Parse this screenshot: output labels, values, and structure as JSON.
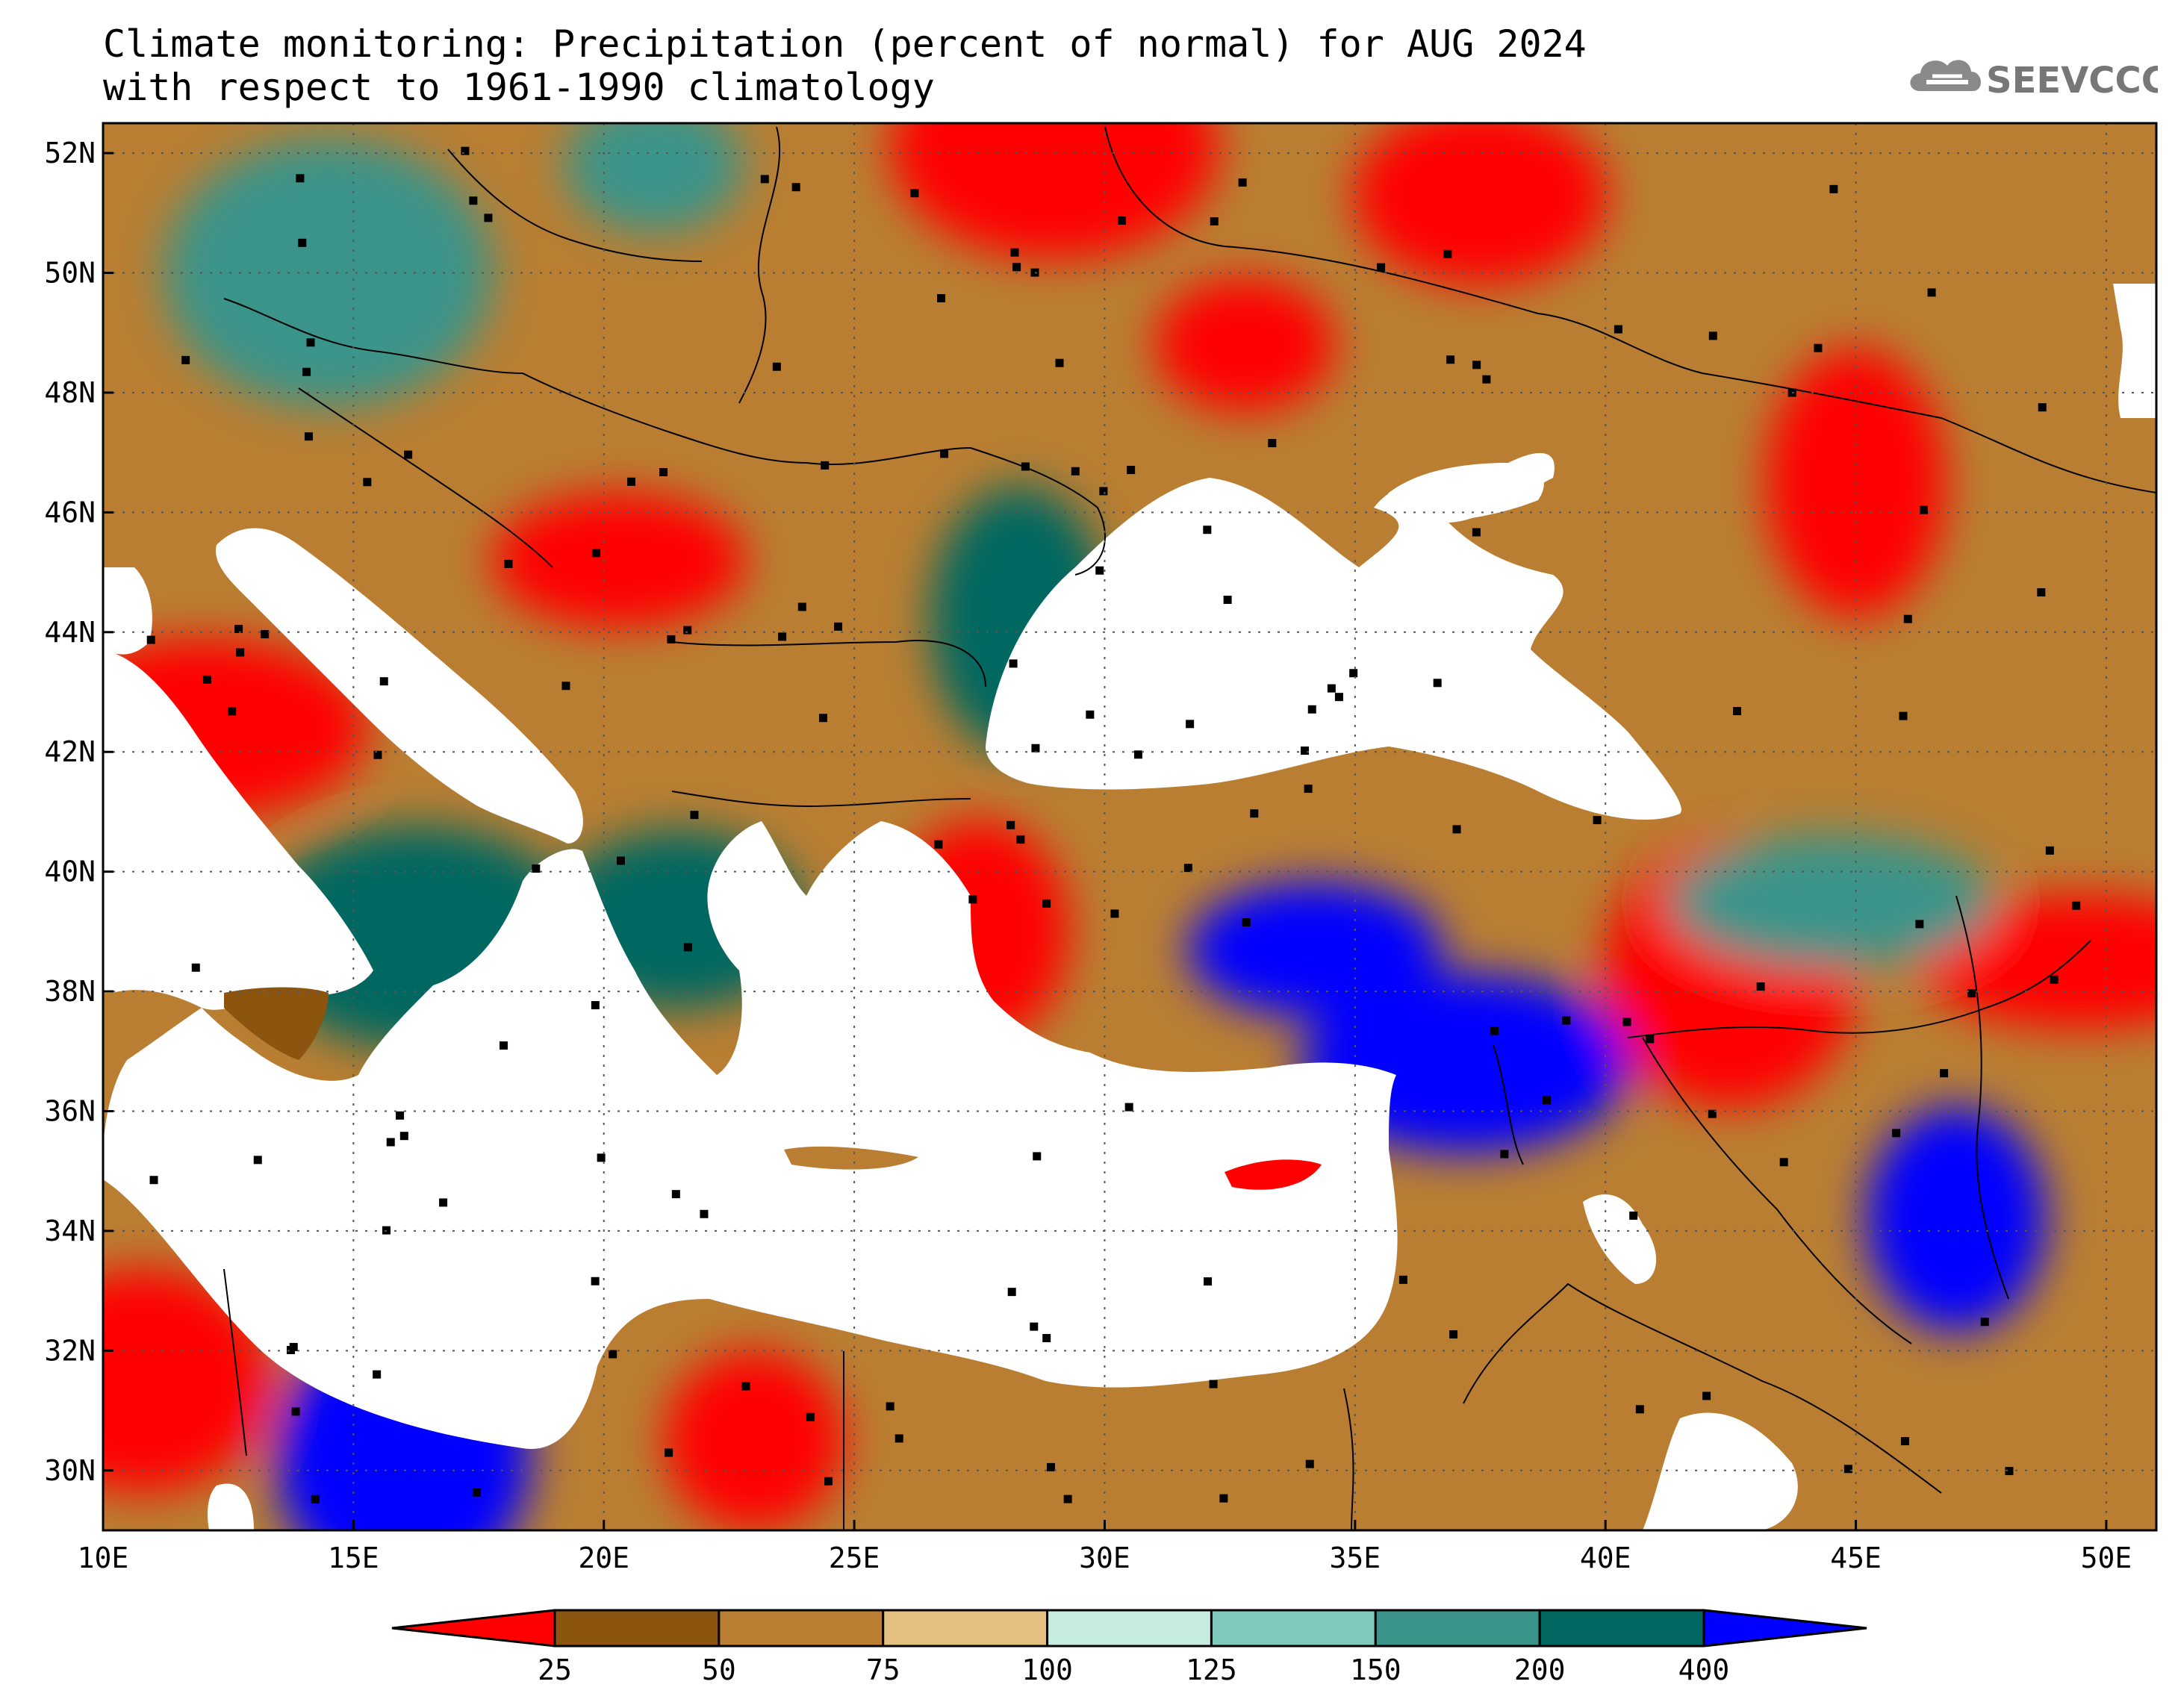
{
  "title": {
    "line1": "Climate monitoring: Precipitation (percent of normal) for AUG 2024",
    "line2": "with respect to 1961-1990 climatology"
  },
  "logo": {
    "text": "SEEVCCC",
    "icon": "cloud-logo-icon"
  },
  "axes": {
    "lon_range": [
      10,
      51
    ],
    "lat_range": [
      29,
      52.5
    ],
    "lon_ticks": [
      "10E",
      "15E",
      "20E",
      "25E",
      "30E",
      "35E",
      "40E",
      "45E",
      "50E"
    ],
    "lon_values": [
      10,
      15,
      20,
      25,
      30,
      35,
      40,
      45,
      50
    ],
    "lat_ticks": [
      "52N",
      "50N",
      "48N",
      "46N",
      "44N",
      "42N",
      "40N",
      "38N",
      "36N",
      "34N",
      "32N",
      "30N"
    ],
    "lat_values": [
      52,
      50,
      48,
      46,
      44,
      42,
      40,
      38,
      36,
      34,
      32,
      30
    ],
    "grid": "dotted"
  },
  "colorbar": {
    "labels": [
      "25",
      "50",
      "75",
      "100",
      "125",
      "150",
      "200",
      "400"
    ],
    "colors": [
      "#ff0000",
      "#8b5510",
      "#b97e32",
      "#e3c07f",
      "#c6ebe1",
      "#7ecbbd",
      "#3a948a",
      "#026760",
      "#0000ff"
    ]
  },
  "precip_regions": [
    {
      "name": "ukraine-central-dry",
      "lon": 32.8,
      "lat": 48.8,
      "category": 0
    },
    {
      "name": "ukraine-north-dry",
      "lon": 37.5,
      "lat": 51.3,
      "category": 0
    },
    {
      "name": "belarus-dry",
      "lon": 29.0,
      "lat": 52.1,
      "category": 0
    },
    {
      "name": "russia-south-dry",
      "lon": 45.0,
      "lat": 46.5,
      "category": 0
    },
    {
      "name": "romania-serbia-dry",
      "lon": 20.3,
      "lat": 45.2,
      "category": 0
    },
    {
      "name": "italy-tyrrhenian-dry",
      "lon": 12.0,
      "lat": 42.4,
      "category": 0
    },
    {
      "name": "western-turkey-dry",
      "lon": 27.5,
      "lat": 39.0,
      "category": 0
    },
    {
      "name": "eastern-turkey-dry",
      "lon": 42.5,
      "lat": 38.3,
      "category": 0
    },
    {
      "name": "iran-northwest-dry",
      "lon": 49.5,
      "lat": 38.5,
      "category": 0
    },
    {
      "name": "libya-east-dry",
      "lon": 23.0,
      "lat": 30.5,
      "category": 0
    },
    {
      "name": "tunisia-dry",
      "lon": 10.8,
      "lat": 31.5,
      "category": 0
    },
    {
      "name": "czechia-wet",
      "lon": 14.5,
      "lat": 50.0,
      "category": 6
    },
    {
      "name": "poland-wet",
      "lon": 21.0,
      "lat": 51.8,
      "category": 6
    },
    {
      "name": "greece-wet",
      "lon": 21.5,
      "lat": 39.2,
      "category": 7
    },
    {
      "name": "calabria-wet",
      "lon": 16.3,
      "lat": 38.9,
      "category": 7
    },
    {
      "name": "bulgaria-coast-wet",
      "lon": 28.3,
      "lat": 44.2,
      "category": 7
    },
    {
      "name": "central-anatolia-wet",
      "lon": 34.2,
      "lat": 38.7,
      "category": 8
    },
    {
      "name": "adana-wet",
      "lon": 37.2,
      "lat": 36.8,
      "category": 8
    },
    {
      "name": "iraq-wet",
      "lon": 47.0,
      "lat": 34.2,
      "category": 8
    },
    {
      "name": "libya-sirte-wet",
      "lon": 16.0,
      "lat": 30.2,
      "category": 8
    },
    {
      "name": "caucasus-wet",
      "lon": 44.5,
      "lat": 39.5,
      "category": 6
    }
  ]
}
